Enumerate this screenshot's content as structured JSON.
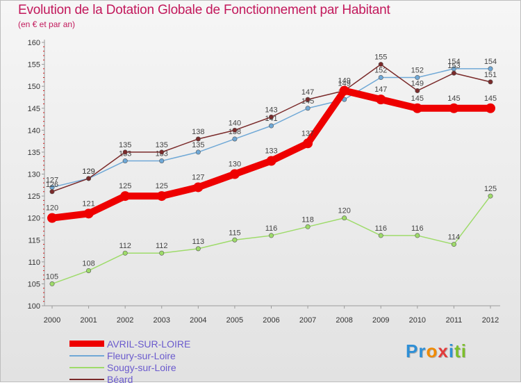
{
  "header": {
    "title": "Evolution de la Dotation Globale de Fonctionnement par Habitant",
    "subtitle": "(en € et par an)"
  },
  "logo": {
    "text": "Proxiti"
  },
  "chart_data": {
    "type": "line",
    "title": "Evolution de la Dotation Globale de Fonctionnement par Habitant",
    "subtitle": "(en € et par an)",
    "xlabel": "",
    "ylabel": "",
    "ylim": [
      100,
      160
    ],
    "yticks": [
      100,
      105,
      110,
      115,
      120,
      125,
      130,
      135,
      140,
      145,
      150,
      155,
      160
    ],
    "categories": [
      "2000",
      "2001",
      "2002",
      "2003",
      "2004",
      "2005",
      "2006",
      "2007",
      "2008",
      "2009",
      "2010",
      "2011",
      "2012"
    ],
    "grid": false,
    "legend_position": "bottom-left",
    "series": [
      {
        "name": "AVRIL-SUR-LOIRE",
        "color": "#ee0000",
        "values": [
          120,
          121,
          125,
          125,
          127,
          130,
          133,
          137,
          149,
          147,
          145,
          145,
          145
        ]
      },
      {
        "name": "Fleury-sur-Loire",
        "color": "#6fa8d6",
        "values": [
          127,
          129,
          133,
          133,
          135,
          138,
          141,
          145,
          147,
          152,
          152,
          154,
          154
        ]
      },
      {
        "name": "Sougy-sur-Loire",
        "color": "#9edb6a",
        "values": [
          105,
          108,
          112,
          112,
          113,
          115,
          116,
          118,
          120,
          116,
          116,
          114,
          125
        ]
      },
      {
        "name": "Béard",
        "color": "#7a2a2a",
        "values": [
          126,
          129,
          135,
          135,
          138,
          140,
          143,
          147,
          149,
          155,
          149,
          153,
          151
        ]
      }
    ]
  }
}
